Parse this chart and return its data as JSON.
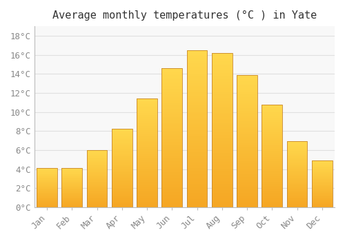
{
  "title": "Average monthly temperatures (°C ) in Yate",
  "months": [
    "Jan",
    "Feb",
    "Mar",
    "Apr",
    "May",
    "Jun",
    "Jul",
    "Aug",
    "Sep",
    "Oct",
    "Nov",
    "Dec"
  ],
  "values": [
    4.1,
    4.1,
    6.0,
    8.2,
    11.4,
    14.6,
    16.5,
    16.2,
    13.9,
    10.8,
    6.9,
    4.9
  ],
  "bar_color_top": "#FFD84D",
  "bar_color_bottom": "#F5A623",
  "bar_edge_color": "#C8862A",
  "background_color": "#FFFFFF",
  "plot_bg_color": "#F8F8F8",
  "grid_color": "#E0E0E0",
  "yticks": [
    0,
    2,
    4,
    6,
    8,
    10,
    12,
    14,
    16,
    18
  ],
  "ylim": [
    0,
    19
  ],
  "tick_label_color": "#888888",
  "title_color": "#333333",
  "font_family": "monospace",
  "title_fontsize": 11,
  "tick_fontsize": 9,
  "bar_width": 0.82
}
